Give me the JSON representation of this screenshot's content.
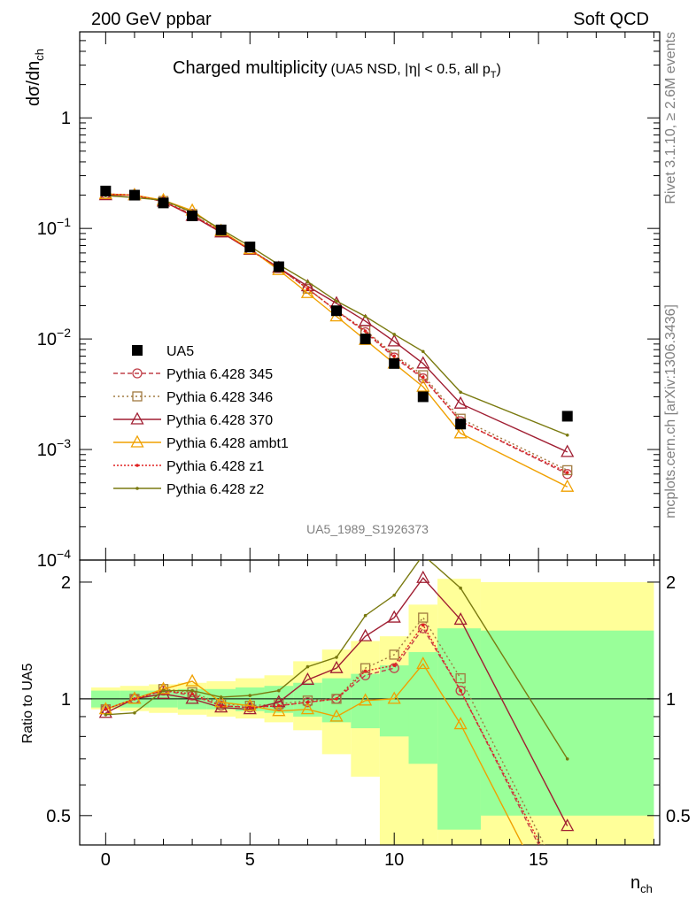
{
  "header": {
    "left": "200 GeV ppbar",
    "right": "Soft QCD"
  },
  "side": {
    "right_top": "Rivet 3.1.10, ≥ 2.6M events",
    "right_bottom": "mcplots.cern.ch [arXiv:1306.3436]"
  },
  "plot_id": "UA5_1989_S1926373",
  "chart_data": [
    {
      "type": "line",
      "title": "Charged multiplicity",
      "subtitle_parts": [
        "(UA5 NSD, |",
        "η",
        "| < 0.5, all p",
        "T",
        ")"
      ],
      "ylabel_parts": [
        "dσ/dn",
        "ch"
      ],
      "yscale": "log",
      "ylim": [
        0.0001,
        6
      ],
      "xlim": [
        -0.9,
        19.2
      ],
      "yticks": [
        {
          "mant": "10",
          "exp": "−4",
          "value": 0.0001
        },
        {
          "mant": "10",
          "exp": "−3",
          "value": 0.001
        },
        {
          "mant": "10",
          "exp": "−2",
          "value": 0.01
        },
        {
          "mant": "10",
          "exp": "−1",
          "value": 0.1
        },
        {
          "mant": "1",
          "exp": "",
          "value": 1
        }
      ],
      "legend_position": "lower-left",
      "series": [
        {
          "name": "UA5",
          "style": "data",
          "color": "#000000",
          "x": [
            0,
            1,
            2,
            3,
            4,
            5,
            6,
            8,
            9,
            10,
            11,
            12.3,
            16
          ],
          "y": [
            0.218,
            0.2,
            0.17,
            0.13,
            0.097,
            0.068,
            0.045,
            0.018,
            0.01,
            0.006,
            0.003,
            0.0017,
            0.002
          ]
        },
        {
          "name": "Pythia 6.428 345",
          "color": "#c0404a",
          "dash": "5,3",
          "marker": "circle",
          "x": [
            0,
            1,
            2,
            3,
            4,
            5,
            6,
            7,
            8,
            9,
            10,
            11,
            12.3,
            16
          ],
          "y": [
            0.205,
            0.2,
            0.175,
            0.133,
            0.093,
            0.064,
            0.044,
            0.0285,
            0.018,
            0.0115,
            0.0068,
            0.0044,
            0.0018,
            0.0006
          ]
        },
        {
          "name": "Pythia 6.428 346",
          "color": "#a07a40",
          "dash": "2,3",
          "marker": "square",
          "x": [
            0,
            1,
            2,
            3,
            4,
            5,
            6,
            7,
            8,
            9,
            10,
            11,
            12.3,
            16
          ],
          "y": [
            0.205,
            0.2,
            0.177,
            0.135,
            0.094,
            0.065,
            0.044,
            0.0285,
            0.018,
            0.012,
            0.0072,
            0.0047,
            0.0019,
            0.00065
          ]
        },
        {
          "name": "Pythia 6.428 370",
          "color": "#a01e32",
          "dash": "",
          "marker": "triangle",
          "x": [
            0,
            1,
            2,
            3,
            4,
            5,
            6,
            7,
            8,
            9,
            10,
            11,
            12.3,
            16
          ],
          "y": [
            0.2,
            0.2,
            0.175,
            0.13,
            0.092,
            0.064,
            0.044,
            0.03,
            0.021,
            0.0145,
            0.0095,
            0.006,
            0.0026,
            0.00095
          ]
        },
        {
          "name": "Pythia 6.428 ambt1",
          "color": "#f0a000",
          "dash": "",
          "marker": "triangle",
          "x": [
            0,
            1,
            2,
            3,
            4,
            5,
            6,
            7,
            8,
            9,
            10,
            11,
            12.3,
            16
          ],
          "y": [
            0.205,
            0.2,
            0.18,
            0.145,
            0.095,
            0.065,
            0.042,
            0.026,
            0.016,
            0.0098,
            0.006,
            0.0037,
            0.0014,
            0.00046
          ]
        },
        {
          "name": "Pythia 6.428 z1",
          "color": "#e02020",
          "dash": "2,2",
          "marker": "dot",
          "x": [
            0,
            1,
            2,
            3,
            4,
            5,
            6,
            7,
            8,
            9,
            10,
            11,
            12.3,
            16
          ],
          "y": [
            0.205,
            0.2,
            0.175,
            0.133,
            0.093,
            0.064,
            0.044,
            0.0285,
            0.018,
            0.0118,
            0.007,
            0.0045,
            0.0018,
            0.00062
          ]
        },
        {
          "name": "Pythia 6.428 z2",
          "color": "#7a7a10",
          "dash": "",
          "marker": "dot",
          "x": [
            0,
            1,
            2,
            3,
            4,
            5,
            6,
            7,
            8,
            9,
            10,
            11,
            12.3,
            16
          ],
          "y": [
            0.198,
            0.19,
            0.18,
            0.14,
            0.098,
            0.069,
            0.047,
            0.033,
            0.022,
            0.016,
            0.011,
            0.0077,
            0.0033,
            0.00135
          ]
        }
      ]
    },
    {
      "type": "line",
      "ylabel": "Ratio to UA5",
      "xlabel_parts": [
        "n",
        "ch"
      ],
      "yscale": "log",
      "ylim": [
        0.42,
        2.28
      ],
      "xlim": [
        -0.9,
        19.2
      ],
      "xticks": [
        0,
        5,
        10,
        15
      ],
      "yticks": [
        0.5,
        1,
        2
      ],
      "ytick_labels": [
        "0.5",
        "1",
        "2"
      ],
      "bands": {
        "edges": [
          -0.5,
          0.5,
          1.5,
          2.5,
          3.5,
          4.5,
          5.5,
          6.5,
          7.5,
          8.5,
          9.5,
          10.5,
          11.5,
          13,
          19
        ],
        "green_lo": [
          0.95,
          0.95,
          0.95,
          0.94,
          0.94,
          0.93,
          0.92,
          0.9,
          0.87,
          0.84,
          0.8,
          0.68,
          0.46,
          0.5
        ],
        "green_hi": [
          1.05,
          1.05,
          1.05,
          1.06,
          1.06,
          1.07,
          1.08,
          1.1,
          1.13,
          1.16,
          1.22,
          1.32,
          1.52,
          1.5
        ],
        "yellow_lo": [
          0.94,
          0.93,
          0.92,
          0.91,
          0.9,
          0.89,
          0.87,
          0.83,
          0.72,
          0.63,
          0.0,
          0.0,
          0.0,
          0.0
        ],
        "yellow_hi": [
          1.07,
          1.08,
          1.09,
          1.1,
          1.11,
          1.13,
          1.15,
          1.25,
          1.34,
          1.41,
          1.45,
          1.75,
          2.04,
          2.0
        ],
        "green_color": "#99ff99",
        "yellow_color": "#ffff99"
      },
      "series": [
        {
          "name": "Pythia 6.428 345",
          "x": [
            0,
            1,
            2,
            3,
            4,
            5,
            6,
            7,
            8,
            9,
            10,
            11,
            12.3,
            16
          ],
          "y": [
            0.94,
            1.0,
            1.05,
            1.02,
            0.96,
            0.95,
            0.96,
            0.98,
            1.0,
            1.15,
            1.2,
            1.52,
            1.05,
            0.3
          ]
        },
        {
          "name": "Pythia 6.428 346",
          "x": [
            0,
            1,
            2,
            3,
            4,
            5,
            6,
            7,
            8,
            9,
            10,
            11,
            12.3,
            16
          ],
          "y": [
            0.94,
            1.0,
            1.06,
            1.04,
            0.97,
            0.96,
            0.97,
            0.99,
            1.0,
            1.2,
            1.3,
            1.62,
            1.13,
            0.32
          ]
        },
        {
          "name": "Pythia 6.428 370",
          "x": [
            0,
            1,
            2,
            3,
            4,
            5,
            6,
            7,
            8,
            9,
            10,
            11,
            12.3,
            16
          ],
          "y": [
            0.92,
            1.0,
            1.03,
            1.0,
            0.95,
            0.94,
            0.98,
            1.12,
            1.2,
            1.45,
            1.62,
            2.05,
            1.6,
            0.47
          ]
        },
        {
          "name": "Pythia 6.428 ambt1",
          "x": [
            0,
            1,
            2,
            3,
            4,
            5,
            6,
            7,
            8,
            9,
            10,
            11,
            12.3,
            16
          ],
          "y": [
            0.94,
            1.0,
            1.06,
            1.11,
            0.98,
            0.96,
            0.93,
            0.94,
            0.9,
            0.99,
            1.0,
            1.23,
            0.86,
            0.25
          ]
        },
        {
          "name": "Pythia 6.428 z1",
          "x": [
            0,
            1,
            2,
            3,
            4,
            5,
            6,
            7,
            8,
            9,
            10,
            11,
            12.3,
            16
          ],
          "y": [
            0.94,
            1.0,
            1.05,
            1.03,
            0.96,
            0.95,
            0.96,
            0.98,
            1.0,
            1.18,
            1.22,
            1.55,
            1.05,
            0.31
          ]
        },
        {
          "name": "Pythia 6.428 z2",
          "x": [
            0,
            1,
            2,
            3,
            4,
            5,
            6,
            7,
            8,
            9,
            10,
            11,
            12.3,
            16
          ],
          "y": [
            0.91,
            0.92,
            1.05,
            1.05,
            1.01,
            1.02,
            1.05,
            1.21,
            1.28,
            1.64,
            1.85,
            2.35,
            1.93,
            0.7
          ]
        }
      ]
    }
  ]
}
